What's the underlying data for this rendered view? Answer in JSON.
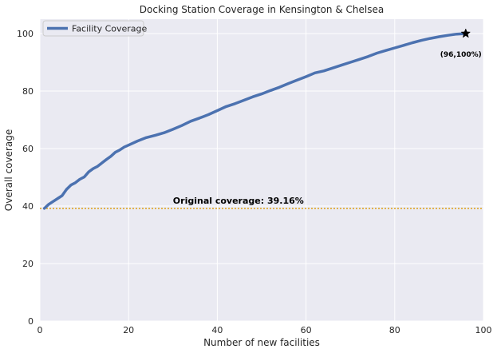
{
  "chart_data": {
    "type": "line",
    "title": "Docking Station Coverage in Kensington & Chelsea",
    "xlabel": "Number of new facilities",
    "ylabel": "Overall coverage",
    "xlim": [
      0,
      100
    ],
    "ylim": [
      0,
      105
    ],
    "x_ticks": [
      0,
      20,
      40,
      60,
      80,
      100
    ],
    "y_ticks": [
      0,
      20,
      40,
      60,
      80,
      100
    ],
    "grid": true,
    "legend_position": "top-left",
    "series": [
      {
        "name": "Facility Coverage",
        "color": "#4c72b0",
        "x": [
          1,
          2,
          3,
          4,
          5,
          6,
          7,
          8,
          9,
          10,
          11,
          12,
          13,
          14,
          15,
          16,
          17,
          18,
          19,
          20,
          22,
          24,
          26,
          28,
          30,
          32,
          34,
          36,
          38,
          40,
          42,
          44,
          46,
          48,
          50,
          52,
          54,
          56,
          58,
          60,
          62,
          64,
          66,
          68,
          70,
          72,
          74,
          76,
          78,
          80,
          82,
          84,
          86,
          88,
          90,
          92,
          94,
          96
        ],
        "values": [
          39.2,
          40.6,
          41.6,
          42.6,
          43.6,
          45.8,
          47.3,
          48.1,
          49.3,
          50.1,
          51.9,
          53.0,
          53.8,
          55.0,
          56.2,
          57.3,
          58.7,
          59.5,
          60.5,
          61.2,
          62.6,
          63.8,
          64.6,
          65.5,
          66.7,
          68.0,
          69.5,
          70.6,
          71.8,
          73.2,
          74.6,
          75.6,
          76.8,
          78.0,
          79.0,
          80.2,
          81.3,
          82.6,
          83.8,
          85.0,
          86.3,
          87.0,
          88.0,
          89.0,
          90.0,
          91.0,
          92.0,
          93.2,
          94.1,
          95.0,
          95.9,
          96.8,
          97.6,
          98.3,
          98.9,
          99.4,
          99.8,
          100.0
        ]
      }
    ],
    "reference_line": {
      "y": 39.16,
      "color": "#dfa72b",
      "label": "Original coverage: 39.16%"
    },
    "end_marker": {
      "x": 96,
      "y": 100,
      "label": "(96,100%)"
    },
    "colors": {
      "plot_bg": "#eaeaf2",
      "grid": "#ffffff",
      "line": "#4c72b0",
      "reference": "#dfa72b"
    }
  }
}
